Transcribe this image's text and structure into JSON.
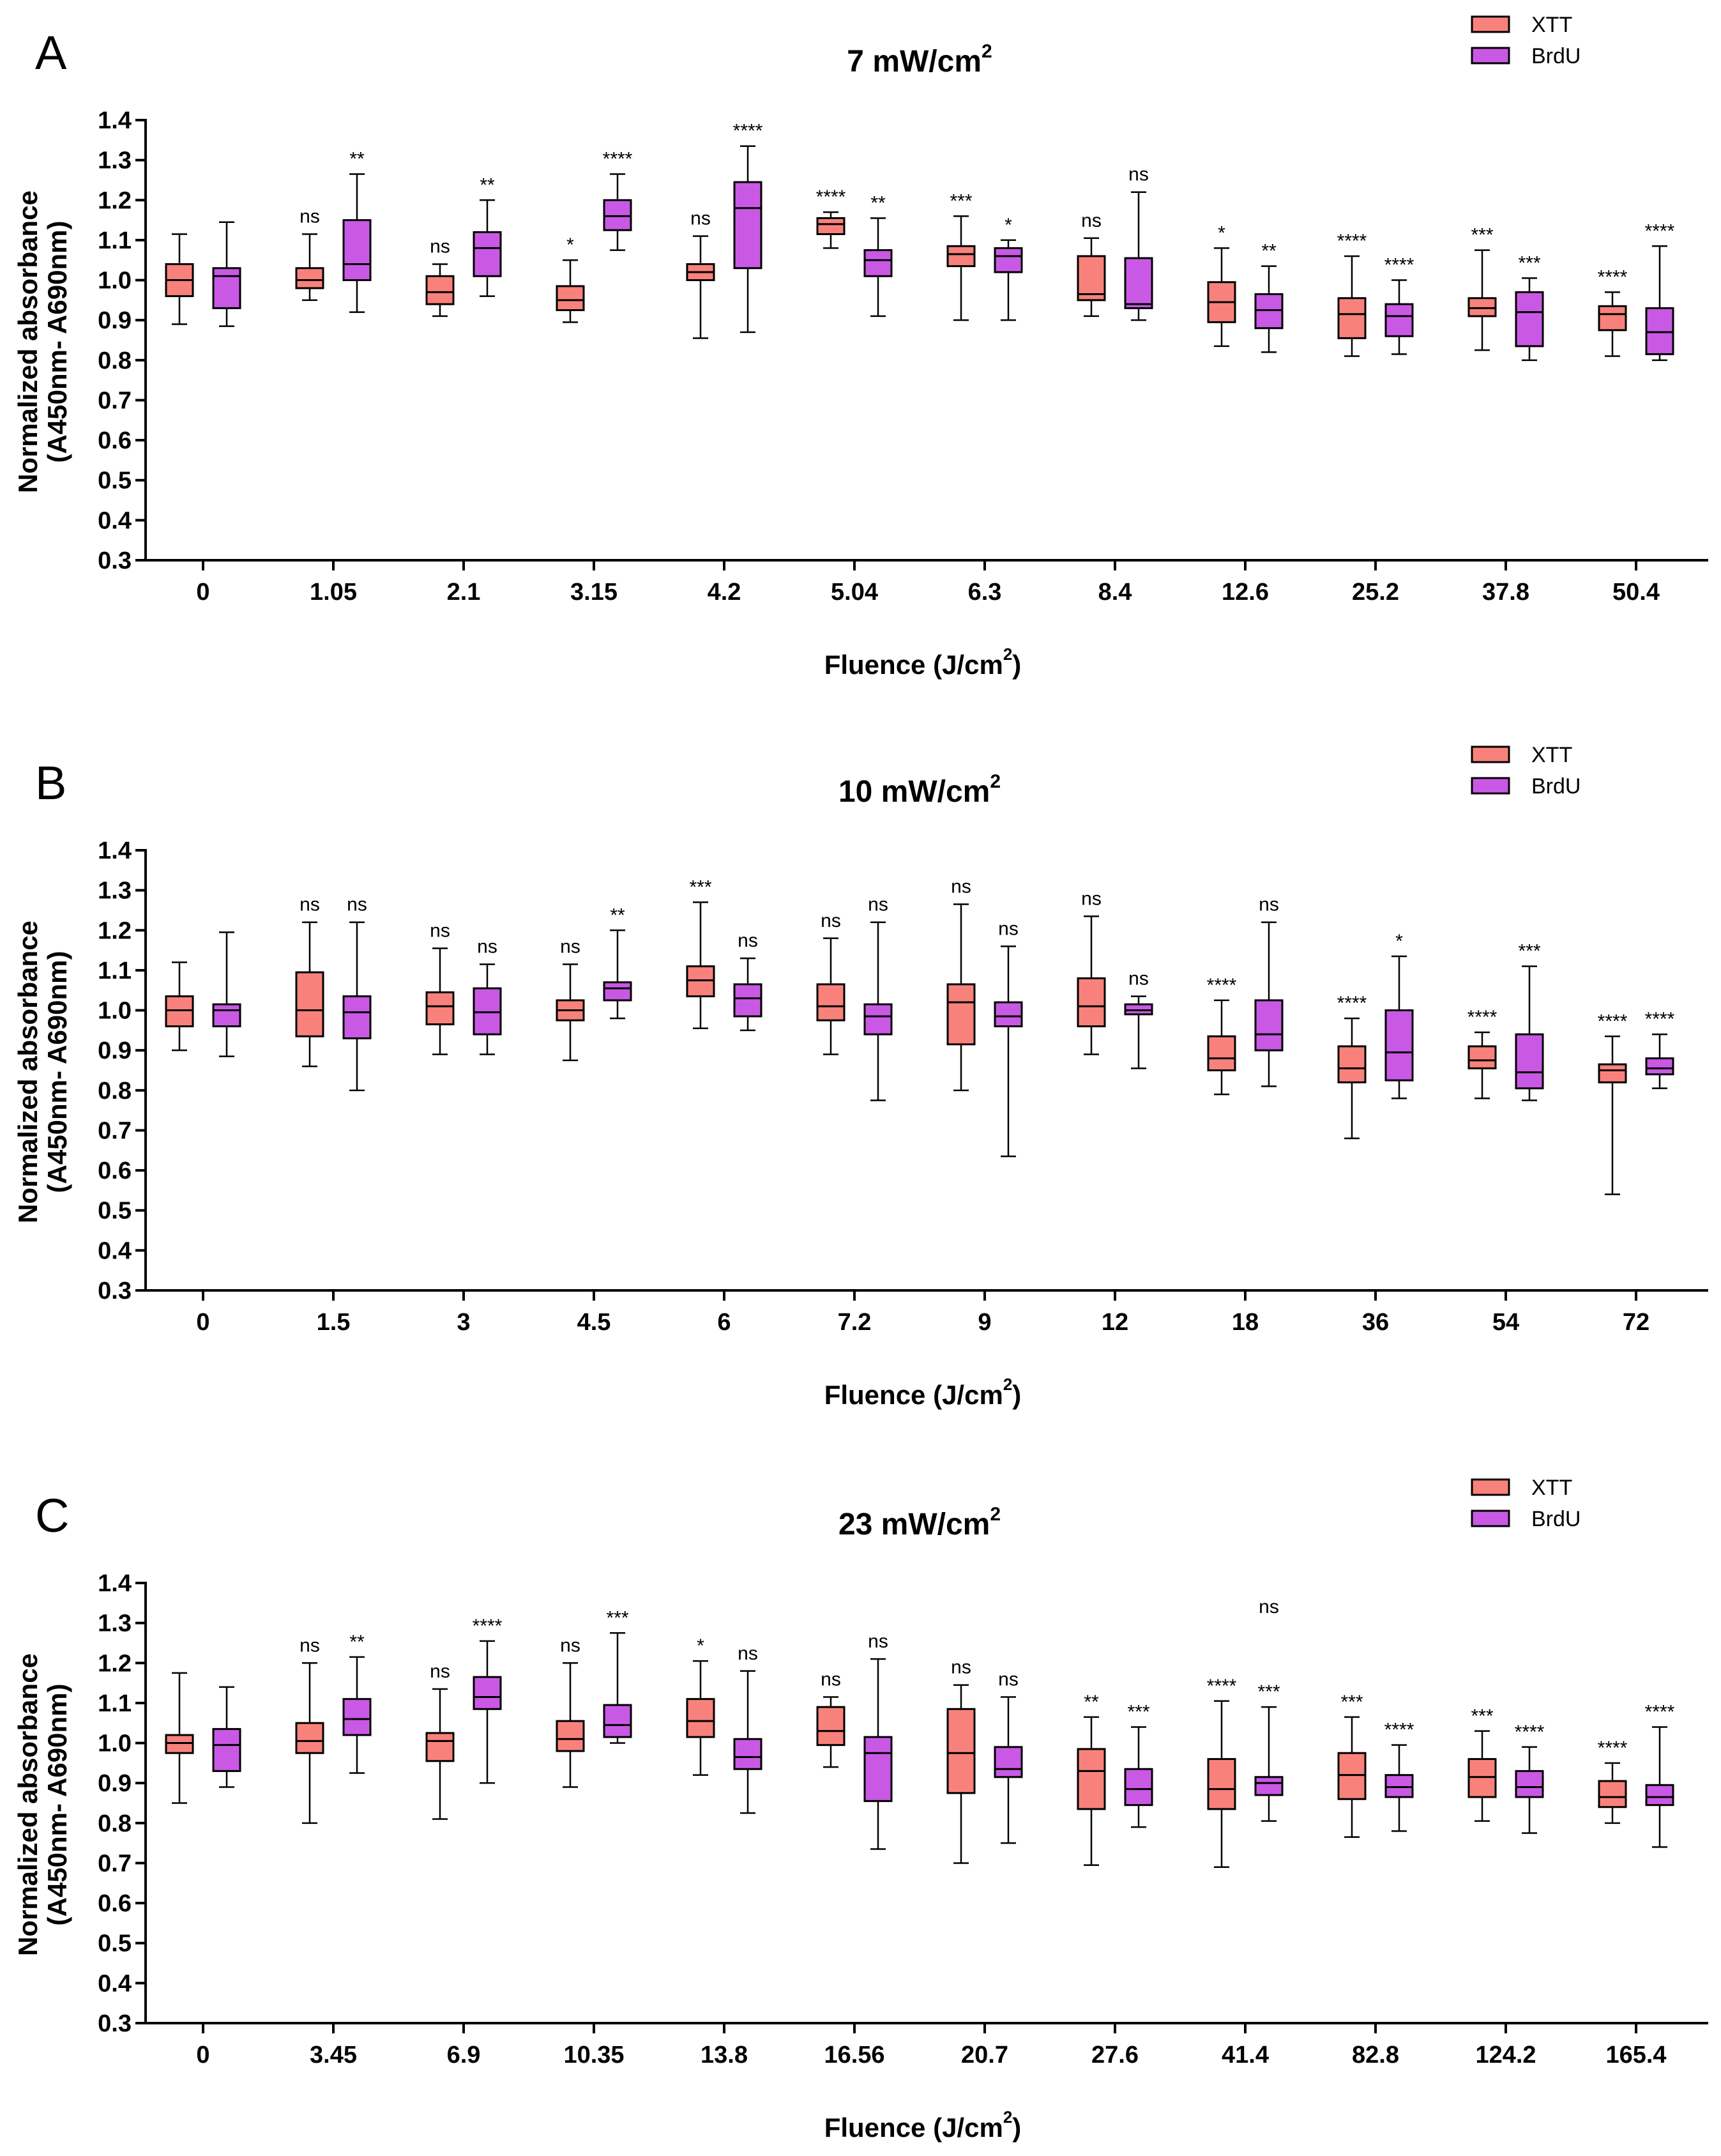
{
  "colors": {
    "xtt": "#F8827B",
    "brdu": "#C959E4",
    "stroke": "#000000"
  },
  "axis_label_x": {
    "text": "Fluence (J/cm",
    "sup": "2",
    "close": ")"
  },
  "axis_label_y_line1": "Normalized absorbance",
  "axis_label_y_line2": "(A450nm- A690nm)",
  "legend": [
    "XTT",
    "BrdU"
  ],
  "chart_data": [
    {
      "type": "box",
      "panel_label": "A",
      "title": {
        "text": "7 mW/cm",
        "sup": "2"
      },
      "ylim": [
        0.3,
        1.4
      ],
      "yticks": [
        "0.3",
        "0.4",
        "0.5",
        "0.6",
        "0.7",
        "0.8",
        "0.9",
        "1.0",
        "1.1",
        "1.2",
        "1.3",
        "1.4"
      ],
      "categories": [
        "0",
        "1.05",
        "2.1",
        "3.15",
        "4.2",
        "5.04",
        "6.3",
        "8.4",
        "12.6",
        "25.2",
        "37.8",
        "50.4"
      ],
      "series": [
        {
          "name": "XTT",
          "boxes": [
            [
              0.89,
              0.96,
              1.0,
              1.04,
              1.115
            ],
            [
              0.95,
              0.98,
              1.0,
              1.03,
              1.115
            ],
            [
              0.91,
              0.94,
              0.97,
              1.01,
              1.04
            ],
            [
              0.895,
              0.925,
              0.95,
              0.985,
              1.05
            ],
            [
              0.855,
              1.0,
              1.02,
              1.04,
              1.11
            ],
            [
              1.08,
              1.115,
              1.14,
              1.155,
              1.17
            ],
            [
              0.9,
              1.035,
              1.065,
              1.085,
              1.16
            ],
            [
              0.91,
              0.95,
              0.965,
              1.06,
              1.105
            ],
            [
              0.835,
              0.895,
              0.945,
              0.995,
              1.08
            ],
            [
              0.81,
              0.855,
              0.915,
              0.955,
              1.06
            ],
            [
              0.825,
              0.91,
              0.93,
              0.955,
              1.075
            ],
            [
              0.81,
              0.875,
              0.915,
              0.935,
              0.97
            ]
          ],
          "labels": [
            "",
            "ns",
            "ns",
            "*",
            "ns",
            "****",
            "***",
            "ns",
            "*",
            "****",
            "***",
            "****"
          ]
        },
        {
          "name": "BrdU",
          "boxes": [
            [
              0.885,
              0.93,
              1.01,
              1.03,
              1.145
            ],
            [
              0.92,
              1.0,
              1.04,
              1.15,
              1.265
            ],
            [
              0.96,
              1.01,
              1.08,
              1.12,
              1.2
            ],
            [
              1.075,
              1.125,
              1.16,
              1.2,
              1.265
            ],
            [
              0.87,
              1.03,
              1.18,
              1.245,
              1.335
            ],
            [
              0.91,
              1.01,
              1.05,
              1.075,
              1.155
            ],
            [
              0.9,
              1.02,
              1.06,
              1.08,
              1.1
            ],
            [
              0.9,
              0.93,
              0.94,
              1.055,
              1.22
            ],
            [
              0.82,
              0.88,
              0.925,
              0.965,
              1.035
            ],
            [
              0.815,
              0.86,
              0.91,
              0.94,
              1.0
            ],
            [
              0.8,
              0.835,
              0.92,
              0.97,
              1.005
            ],
            [
              0.8,
              0.815,
              0.87,
              0.93,
              1.085
            ]
          ],
          "labels": [
            "",
            "**",
            "**",
            "****",
            "****",
            "**",
            "*",
            "ns",
            "**",
            "****",
            "***",
            "****"
          ]
        }
      ]
    },
    {
      "type": "box",
      "panel_label": "B",
      "title": {
        "text": "10 mW/cm",
        "sup": "2"
      },
      "ylim": [
        0.3,
        1.4
      ],
      "yticks": [
        "0.3",
        "0.4",
        "0.5",
        "0.6",
        "0.7",
        "0.8",
        "0.9",
        "1.0",
        "1.1",
        "1.2",
        "1.3",
        "1.4"
      ],
      "categories": [
        "0",
        "1.5",
        "3",
        "4.5",
        "6",
        "7.2",
        "9",
        "12",
        "18",
        "36",
        "54",
        "72"
      ],
      "series": [
        {
          "name": "XTT",
          "boxes": [
            [
              0.9,
              0.96,
              1.0,
              1.035,
              1.12
            ],
            [
              0.86,
              0.935,
              1.0,
              1.095,
              1.22
            ],
            [
              0.89,
              0.965,
              1.01,
              1.045,
              1.155
            ],
            [
              0.875,
              0.975,
              1.0,
              1.025,
              1.115
            ],
            [
              0.955,
              1.035,
              1.075,
              1.11,
              1.27
            ],
            [
              0.89,
              0.975,
              1.01,
              1.065,
              1.18
            ],
            [
              0.8,
              0.915,
              1.02,
              1.065,
              1.265
            ],
            [
              0.89,
              0.96,
              1.01,
              1.08,
              1.235
            ],
            [
              0.79,
              0.85,
              0.88,
              0.935,
              1.025
            ],
            [
              0.68,
              0.82,
              0.855,
              0.91,
              0.98
            ],
            [
              0.78,
              0.855,
              0.875,
              0.91,
              0.945
            ],
            [
              0.54,
              0.82,
              0.85,
              0.865,
              0.935
            ]
          ],
          "labels": [
            "",
            "ns",
            "ns",
            "ns",
            "***",
            "ns",
            "ns",
            "ns",
            "****",
            "****",
            "****",
            "****"
          ]
        },
        {
          "name": "BrdU",
          "boxes": [
            [
              0.885,
              0.96,
              1.0,
              1.015,
              1.195
            ],
            [
              0.8,
              0.93,
              0.995,
              1.035,
              1.22
            ],
            [
              0.89,
              0.94,
              0.995,
              1.055,
              1.115
            ],
            [
              0.98,
              1.025,
              1.055,
              1.07,
              1.2
            ],
            [
              0.95,
              0.985,
              1.03,
              1.065,
              1.13
            ],
            [
              0.775,
              0.94,
              0.985,
              1.015,
              1.22
            ],
            [
              0.635,
              0.96,
              0.985,
              1.02,
              1.16
            ],
            [
              0.855,
              0.99,
              1.0,
              1.015,
              1.035
            ],
            [
              0.81,
              0.9,
              0.94,
              1.025,
              1.22
            ],
            [
              0.78,
              0.825,
              0.895,
              1.0,
              1.135
            ],
            [
              0.775,
              0.805,
              0.845,
              0.94,
              1.11
            ],
            [
              0.805,
              0.84,
              0.855,
              0.88,
              0.94
            ]
          ],
          "labels": [
            "",
            "ns",
            "ns",
            "**",
            "ns",
            "ns",
            "ns",
            "ns",
            "ns",
            "*",
            "***",
            "****"
          ]
        }
      ]
    },
    {
      "type": "box",
      "panel_label": "C",
      "title": {
        "text": "23 mW/cm",
        "sup": "2"
      },
      "ylim": [
        0.3,
        1.4
      ],
      "yticks": [
        "0.3",
        "0.4",
        "0.5",
        "0.6",
        "0.7",
        "0.8",
        "0.9",
        "1.0",
        "1.1",
        "1.2",
        "1.3",
        "1.4"
      ],
      "categories": [
        "0",
        "3.45",
        "6.9",
        "10.35",
        "13.8",
        "16.56",
        "20.7",
        "27.6",
        "41.4",
        "82.8",
        "124.2",
        "165.4"
      ],
      "series": [
        {
          "name": "XTT",
          "boxes": [
            [
              0.85,
              0.975,
              1.0,
              1.02,
              1.175
            ],
            [
              0.8,
              0.975,
              1.005,
              1.05,
              1.2
            ],
            [
              0.81,
              0.955,
              1.005,
              1.025,
              1.135
            ],
            [
              0.89,
              0.98,
              1.01,
              1.055,
              1.2
            ],
            [
              0.92,
              1.015,
              1.055,
              1.11,
              1.205
            ],
            [
              0.94,
              0.995,
              1.03,
              1.09,
              1.115
            ],
            [
              0.7,
              0.875,
              0.975,
              1.085,
              1.145
            ],
            [
              0.695,
              0.835,
              0.93,
              0.985,
              1.065
            ],
            [
              0.69,
              0.835,
              0.885,
              0.96,
              1.105
            ],
            [
              0.765,
              0.86,
              0.92,
              0.975,
              1.065
            ],
            [
              0.805,
              0.865,
              0.915,
              0.96,
              1.03
            ],
            [
              0.8,
              0.84,
              0.865,
              0.905,
              0.95
            ]
          ],
          "labels": [
            "",
            "ns",
            "ns",
            "ns",
            "*",
            "ns",
            "ns",
            "**",
            "****",
            "***",
            "***",
            "****"
          ]
        },
        {
          "name": "BrdU",
          "boxes": [
            [
              0.89,
              0.93,
              0.995,
              1.035,
              1.14
            ],
            [
              0.925,
              1.02,
              1.06,
              1.11,
              1.215
            ],
            [
              0.9,
              1.085,
              1.115,
              1.165,
              1.255
            ],
            [
              1.0,
              1.015,
              1.045,
              1.095,
              1.275
            ],
            [
              0.825,
              0.935,
              0.965,
              1.01,
              1.18
            ],
            [
              0.735,
              0.855,
              0.975,
              1.015,
              1.21
            ],
            [
              0.75,
              0.915,
              0.935,
              0.99,
              1.115
            ],
            [
              0.79,
              0.845,
              0.885,
              0.935,
              1.04
            ],
            [
              0.805,
              0.87,
              0.9,
              0.915,
              1.09
            ],
            [
              0.78,
              0.865,
              0.89,
              0.92,
              0.995
            ],
            [
              0.775,
              0.865,
              0.89,
              0.93,
              0.99
            ],
            [
              0.74,
              0.845,
              0.865,
              0.895,
              1.04
            ]
          ],
          "labels": [
            "",
            "**",
            "****",
            "***",
            "ns",
            "ns",
            "ns",
            "***",
            "***",
            "****",
            "****",
            "****"
          ],
          "extra_labels": [
            {
              "index": 8,
              "text": "ns",
              "value": 1.325
            }
          ]
        }
      ]
    }
  ]
}
